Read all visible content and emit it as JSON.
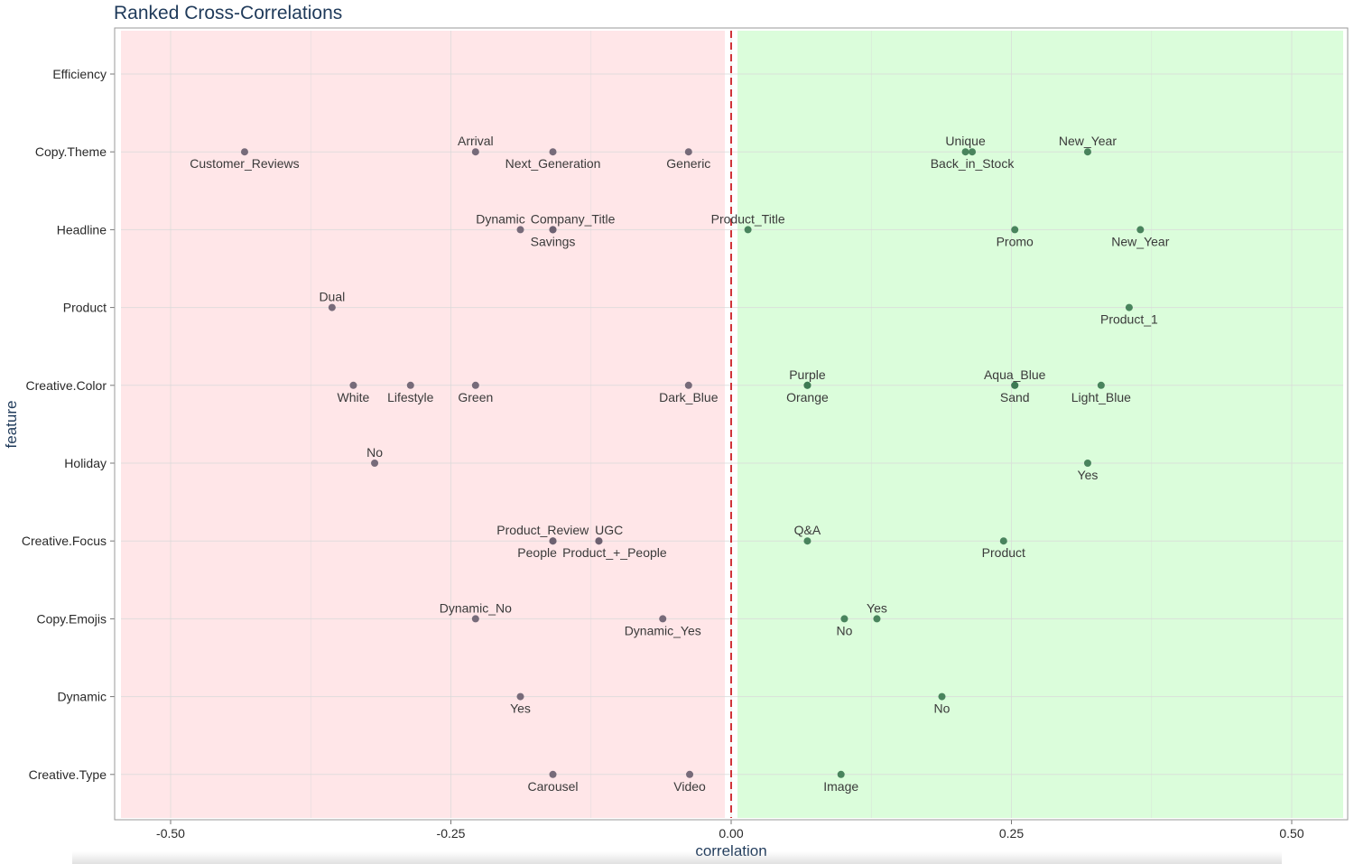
{
  "chart_data": {
    "type": "scatter",
    "title": "Ranked Cross-Correlations",
    "xlabel": "correlation",
    "ylabel": "feature",
    "xlim": [
      -0.55,
      0.55
    ],
    "xticks": [
      -0.5,
      -0.25,
      0.0,
      0.25,
      0.5
    ],
    "xtick_labels": [
      "-0.50",
      "-0.25",
      "0.00",
      "0.25",
      "0.50"
    ],
    "features": [
      "Efficiency",
      "Copy.Theme",
      "Headline",
      "Product",
      "Creative.Color",
      "Holiday",
      "Creative.Focus",
      "Copy.Emojis",
      "Dynamic",
      "Creative.Type"
    ],
    "reference_line": {
      "x": 0.0,
      "color": "#d0343a",
      "style": "dashed"
    },
    "regions": [
      {
        "name": "negative",
        "range": [
          -0.55,
          0.0
        ],
        "color": "#ffe6e8"
      },
      {
        "name": "positive",
        "range": [
          0.0,
          0.55
        ],
        "color": "#dbfddb"
      }
    ],
    "colors": {
      "negative_point": "#6b6170",
      "positive_point": "#3d7a52",
      "grid": "#d9d9d9"
    },
    "points": [
      {
        "feature": "Copy.Theme",
        "label": "Customer_Reviews",
        "x": -0.434,
        "pos": "below"
      },
      {
        "feature": "Copy.Theme",
        "label": "Arrival",
        "x": -0.228,
        "pos": "above"
      },
      {
        "feature": "Copy.Theme",
        "label": "Next_Generation",
        "x": -0.159,
        "pos": "below"
      },
      {
        "feature": "Copy.Theme",
        "label": "Generic",
        "x": -0.038,
        "pos": "below"
      },
      {
        "feature": "Copy.Theme",
        "label": "Unique",
        "x": 0.209,
        "pos": "above"
      },
      {
        "feature": "Copy.Theme",
        "label": "Back_in_Stock",
        "x": 0.215,
        "pos": "below"
      },
      {
        "feature": "Copy.Theme",
        "label": "New_Year",
        "x": 0.318,
        "pos": "above"
      },
      {
        "feature": "Headline",
        "label": "Dynamic",
        "x": -0.188,
        "pos": "above"
      },
      {
        "feature": "Headline",
        "label": "Company_Title",
        "x": -0.159,
        "pos": "above"
      },
      {
        "feature": "Headline",
        "label": "Savings",
        "x": -0.159,
        "pos": "below"
      },
      {
        "feature": "Headline",
        "label": "Product_Title",
        "x": 0.015,
        "pos": "above"
      },
      {
        "feature": "Headline",
        "label": "Promo",
        "x": 0.253,
        "pos": "below"
      },
      {
        "feature": "Headline",
        "label": "New_Year",
        "x": 0.365,
        "pos": "below"
      },
      {
        "feature": "Product",
        "label": "Dual",
        "x": -0.356,
        "pos": "above"
      },
      {
        "feature": "Product",
        "label": "Product_1",
        "x": 0.355,
        "pos": "below"
      },
      {
        "feature": "Creative.Color",
        "label": "White",
        "x": -0.337,
        "pos": "below"
      },
      {
        "feature": "Creative.Color",
        "label": "Lifestyle",
        "x": -0.286,
        "pos": "below"
      },
      {
        "feature": "Creative.Color",
        "label": "Green",
        "x": -0.228,
        "pos": "below"
      },
      {
        "feature": "Creative.Color",
        "label": "Dark_Blue",
        "x": -0.038,
        "pos": "below"
      },
      {
        "feature": "Creative.Color",
        "label": "Purple",
        "x": 0.068,
        "pos": "above"
      },
      {
        "feature": "Creative.Color",
        "label": "Orange",
        "x": 0.068,
        "pos": "below"
      },
      {
        "feature": "Creative.Color",
        "label": "Aqua_Blue",
        "x": 0.253,
        "pos": "above"
      },
      {
        "feature": "Creative.Color",
        "label": "Sand",
        "x": 0.253,
        "pos": "below"
      },
      {
        "feature": "Creative.Color",
        "label": "Light_Blue",
        "x": 0.33,
        "pos": "below"
      },
      {
        "feature": "Holiday",
        "label": "No",
        "x": -0.318,
        "pos": "above"
      },
      {
        "feature": "Holiday",
        "label": "Yes",
        "x": 0.318,
        "pos": "below"
      },
      {
        "feature": "Creative.Focus",
        "label": "Product_Review",
        "x": -0.159,
        "pos": "above"
      },
      {
        "feature": "Creative.Focus",
        "label": "People",
        "x": -0.159,
        "pos": "below"
      },
      {
        "feature": "Creative.Focus",
        "label": "UGC",
        "x": -0.118,
        "pos": "above"
      },
      {
        "feature": "Creative.Focus",
        "label": "Product_+_People",
        "x": -0.118,
        "pos": "below"
      },
      {
        "feature": "Creative.Focus",
        "label": "Q&A",
        "x": 0.068,
        "pos": "above"
      },
      {
        "feature": "Creative.Focus",
        "label": "Product",
        "x": 0.243,
        "pos": "below"
      },
      {
        "feature": "Copy.Emojis",
        "label": "Dynamic_No",
        "x": -0.228,
        "pos": "above"
      },
      {
        "feature": "Copy.Emojis",
        "label": "Dynamic_Yes",
        "x": -0.061,
        "pos": "below"
      },
      {
        "feature": "Copy.Emojis",
        "label": "No",
        "x": 0.101,
        "pos": "below"
      },
      {
        "feature": "Copy.Emojis",
        "label": "Yes",
        "x": 0.13,
        "pos": "above"
      },
      {
        "feature": "Dynamic",
        "label": "Yes",
        "x": -0.188,
        "pos": "below"
      },
      {
        "feature": "Dynamic",
        "label": "No",
        "x": 0.188,
        "pos": "below"
      },
      {
        "feature": "Creative.Type",
        "label": "Carousel",
        "x": -0.159,
        "pos": "below"
      },
      {
        "feature": "Creative.Type",
        "label": "Video",
        "x": -0.037,
        "pos": "below"
      },
      {
        "feature": "Creative.Type",
        "label": "Image",
        "x": 0.098,
        "pos": "below"
      }
    ]
  }
}
